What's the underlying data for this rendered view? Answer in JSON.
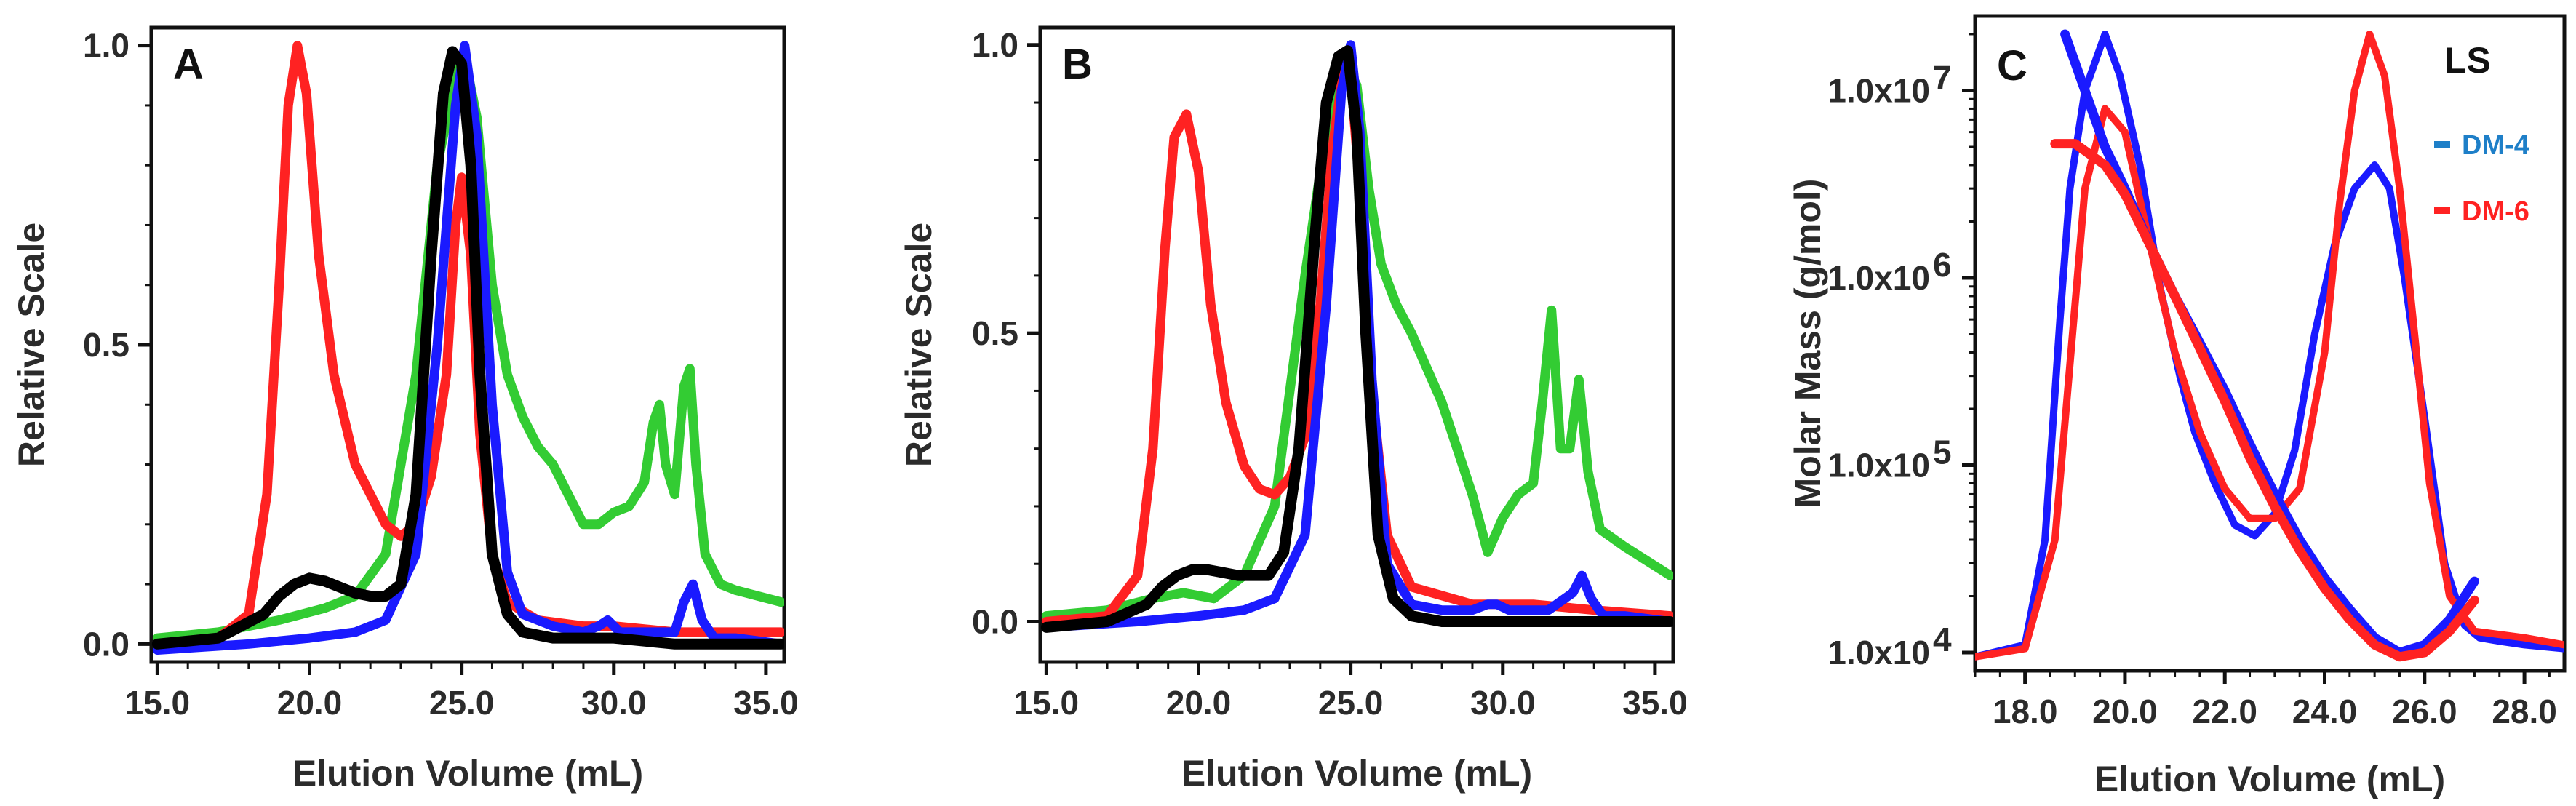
{
  "chart_data": [
    {
      "id": "A",
      "type": "line",
      "panel_label": "A",
      "xlabel": "Elution Volume (mL)",
      "ylabel": "Relative Scale",
      "xlim": [
        14.8,
        35.6
      ],
      "ylim": [
        -0.03,
        1.03
      ],
      "xticks": [
        15.0,
        20.0,
        25.0,
        30.0,
        35.0
      ],
      "xtick_labels": [
        "15.0",
        "20.0",
        "25.0",
        "30.0",
        "35.0"
      ],
      "yticks": [
        0.0,
        0.5,
        1.0
      ],
      "ytick_labels": [
        "0.0",
        "0.5",
        "1.0"
      ],
      "series": [
        {
          "name": "green",
          "color": "#33cc33",
          "x": [
            15.0,
            17.0,
            19.0,
            20.5,
            21.5,
            22.5,
            23.5,
            24.2,
            24.8,
            25.1,
            25.5,
            26.0,
            26.5,
            27.0,
            27.5,
            28.0,
            28.5,
            29.0,
            29.5,
            30.0,
            30.5,
            31.0,
            31.3,
            31.5,
            31.7,
            32.0,
            32.3,
            32.5,
            32.7,
            33.0,
            33.5,
            34.0,
            35.5
          ],
          "y": [
            0.01,
            0.02,
            0.04,
            0.06,
            0.08,
            0.15,
            0.45,
            0.8,
            0.95,
            0.98,
            0.88,
            0.6,
            0.45,
            0.38,
            0.33,
            0.3,
            0.25,
            0.2,
            0.2,
            0.22,
            0.23,
            0.27,
            0.37,
            0.4,
            0.3,
            0.25,
            0.43,
            0.46,
            0.3,
            0.15,
            0.1,
            0.09,
            0.07
          ]
        },
        {
          "name": "red",
          "color": "#ff2222",
          "x": [
            15.0,
            17.0,
            18.0,
            18.6,
            19.0,
            19.3,
            19.6,
            19.9,
            20.3,
            20.8,
            21.5,
            22.5,
            23.0,
            23.5,
            24.0,
            24.5,
            24.8,
            25.0,
            25.3,
            25.6,
            26.0,
            26.5,
            27.5,
            29.0,
            30.0,
            32.0,
            35.5
          ],
          "y": [
            0.0,
            0.01,
            0.05,
            0.25,
            0.6,
            0.9,
            1.0,
            0.92,
            0.65,
            0.45,
            0.3,
            0.2,
            0.18,
            0.2,
            0.28,
            0.45,
            0.7,
            0.78,
            0.65,
            0.35,
            0.15,
            0.07,
            0.04,
            0.03,
            0.03,
            0.02,
            0.02
          ]
        },
        {
          "name": "blue",
          "color": "#1a1aff",
          "x": [
            15.0,
            18.0,
            20.0,
            21.5,
            22.5,
            23.5,
            24.2,
            24.8,
            25.1,
            25.5,
            26.0,
            26.5,
            27.0,
            28.0,
            29.0,
            29.5,
            29.8,
            30.2,
            31.0,
            32.0,
            32.3,
            32.6,
            32.9,
            33.3,
            34.0,
            35.5
          ],
          "y": [
            -0.01,
            0.0,
            0.01,
            0.02,
            0.04,
            0.15,
            0.5,
            0.9,
            1.0,
            0.85,
            0.4,
            0.12,
            0.05,
            0.03,
            0.02,
            0.03,
            0.04,
            0.02,
            0.02,
            0.02,
            0.07,
            0.1,
            0.04,
            0.01,
            0.01,
            0.0
          ]
        },
        {
          "name": "black",
          "color": "#000000",
          "x": [
            15.0,
            17.0,
            18.5,
            19.0,
            19.5,
            20.0,
            20.5,
            21.0,
            21.5,
            22.0,
            22.5,
            23.0,
            23.5,
            24.0,
            24.4,
            24.7,
            25.0,
            25.3,
            25.6,
            26.0,
            26.5,
            27.0,
            28.0,
            30.0,
            32.0,
            35.5
          ],
          "y": [
            0.0,
            0.01,
            0.05,
            0.08,
            0.1,
            0.11,
            0.105,
            0.095,
            0.085,
            0.08,
            0.08,
            0.1,
            0.25,
            0.65,
            0.92,
            0.99,
            0.97,
            0.8,
            0.45,
            0.15,
            0.05,
            0.02,
            0.01,
            0.01,
            0.0,
            0.0
          ]
        }
      ]
    },
    {
      "id": "B",
      "type": "line",
      "panel_label": "B",
      "xlabel": "Elution Volume (mL)",
      "ylabel": "Relative Scale",
      "xlim": [
        14.8,
        35.6
      ],
      "ylim": [
        -0.07,
        1.03
      ],
      "xticks": [
        15.0,
        20.0,
        25.0,
        30.0,
        35.0
      ],
      "xtick_labels": [
        "15.0",
        "20.0",
        "25.0",
        "30.0",
        "35.0"
      ],
      "yticks": [
        0.0,
        0.5,
        1.0
      ],
      "ytick_labels": [
        "0.0",
        "0.5",
        "1.0"
      ],
      "series": [
        {
          "name": "green",
          "color": "#33cc33",
          "x": [
            15.0,
            17.0,
            18.5,
            19.5,
            20.5,
            21.5,
            22.5,
            23.5,
            24.2,
            24.8,
            25.2,
            25.6,
            26.0,
            26.5,
            27.0,
            27.5,
            28.0,
            28.5,
            29.0,
            29.5,
            30.0,
            30.5,
            31.0,
            31.3,
            31.6,
            31.9,
            32.2,
            32.5,
            32.8,
            33.2,
            34.0,
            35.5
          ],
          "y": [
            0.01,
            0.02,
            0.04,
            0.05,
            0.04,
            0.08,
            0.2,
            0.6,
            0.85,
            0.97,
            0.93,
            0.75,
            0.62,
            0.55,
            0.5,
            0.44,
            0.38,
            0.3,
            0.22,
            0.12,
            0.18,
            0.22,
            0.24,
            0.38,
            0.54,
            0.3,
            0.3,
            0.42,
            0.26,
            0.16,
            0.13,
            0.08
          ]
        },
        {
          "name": "red",
          "color": "#ff2222",
          "x": [
            15.0,
            17.0,
            18.0,
            18.5,
            18.9,
            19.2,
            19.6,
            20.0,
            20.4,
            20.9,
            21.5,
            22.0,
            22.5,
            23.0,
            23.5,
            24.0,
            24.4,
            24.8,
            25.0,
            25.3,
            25.7,
            26.2,
            27.0,
            29.0,
            31.0,
            33.0,
            35.5
          ],
          "y": [
            0.0,
            0.01,
            0.08,
            0.3,
            0.65,
            0.84,
            0.88,
            0.78,
            0.55,
            0.38,
            0.27,
            0.23,
            0.22,
            0.25,
            0.32,
            0.55,
            0.82,
            0.97,
            0.95,
            0.75,
            0.4,
            0.15,
            0.06,
            0.03,
            0.03,
            0.02,
            0.01
          ]
        },
        {
          "name": "blue",
          "color": "#1a1aff",
          "x": [
            15.0,
            18.0,
            20.0,
            21.5,
            22.5,
            23.5,
            24.2,
            24.7,
            25.0,
            25.3,
            25.7,
            26.2,
            27.0,
            28.0,
            29.0,
            29.5,
            29.8,
            30.2,
            31.5,
            32.3,
            32.6,
            32.9,
            33.3,
            34.0,
            35.5
          ],
          "y": [
            -0.01,
            0.0,
            0.01,
            0.02,
            0.04,
            0.15,
            0.55,
            0.92,
            1.0,
            0.85,
            0.42,
            0.1,
            0.03,
            0.02,
            0.02,
            0.03,
            0.03,
            0.02,
            0.02,
            0.05,
            0.08,
            0.04,
            0.01,
            0.01,
            0.0
          ]
        },
        {
          "name": "black",
          "color": "#000000",
          "x": [
            15.0,
            17.0,
            18.3,
            18.8,
            19.3,
            19.8,
            20.3,
            20.8,
            21.3,
            21.8,
            22.3,
            22.8,
            23.3,
            23.8,
            24.2,
            24.6,
            24.9,
            25.2,
            25.5,
            25.9,
            26.4,
            27.0,
            28.0,
            30.0,
            32.0,
            35.5
          ],
          "y": [
            -0.01,
            0.0,
            0.03,
            0.06,
            0.08,
            0.09,
            0.09,
            0.085,
            0.08,
            0.08,
            0.08,
            0.12,
            0.3,
            0.65,
            0.9,
            0.98,
            0.99,
            0.85,
            0.5,
            0.15,
            0.04,
            0.01,
            0.0,
            0.0,
            0.0,
            0.0
          ]
        }
      ]
    },
    {
      "id": "C",
      "type": "line",
      "panel_label": "C",
      "annotation": "LS",
      "xlabel": "Elution Volume (mL)",
      "ylabel": "Molar Mass (g/mol)",
      "yscale": "log",
      "xlim": [
        17.0,
        28.8
      ],
      "ylim": [
        8000,
        25000000
      ],
      "xticks": [
        18.0,
        20.0,
        22.0,
        24.0,
        26.0,
        28.0
      ],
      "xtick_labels": [
        "18.0",
        "20.0",
        "22.0",
        "24.0",
        "26.0",
        "28.0"
      ],
      "yticks": [
        10000,
        100000,
        1000000,
        10000000
      ],
      "ytick_labels": [
        "1.0x10",
        "1.0x10",
        "1.0x10",
        "1.0x10"
      ],
      "ytick_exponents": [
        "4",
        "5",
        "6",
        "7"
      ],
      "legend": [
        "DM-4",
        "DM-6"
      ],
      "series": [
        {
          "name": "DM-4",
          "color": "#1a1aff",
          "label_color": "#1e7fc8",
          "x": [
            17.0,
            18.0,
            18.4,
            18.7,
            18.9,
            19.2,
            19.6,
            19.9,
            20.3,
            20.7,
            21.1,
            21.4,
            21.8,
            22.2,
            22.6,
            23.0,
            23.4,
            23.8,
            24.2,
            24.6,
            25.0,
            25.3,
            25.6,
            26.0,
            26.4,
            26.8,
            27.1,
            27.5,
            28.0,
            28.8
          ],
          "y": [
            9500,
            11000,
            40000,
            600000,
            3000000,
            10000000,
            20000000,
            12000000,
            4000000,
            900000,
            300000,
            150000,
            80000,
            48000,
            42000,
            55000,
            120000,
            500000,
            1500000,
            3000000,
            4000000,
            3000000,
            1000000,
            180000,
            30000,
            14000,
            12000,
            11500,
            11000,
            10500
          ]
        },
        {
          "name": "DM-6",
          "color": "#ff2222",
          "label_color": "#ff2222",
          "x": [
            17.0,
            18.0,
            18.6,
            19.2,
            19.6,
            20.0,
            20.5,
            21.0,
            21.5,
            22.0,
            22.5,
            23.0,
            23.5,
            24.0,
            24.3,
            24.6,
            24.9,
            25.2,
            25.5,
            25.8,
            26.1,
            26.5,
            27.0,
            28.0,
            28.8
          ],
          "y": [
            9500,
            10500,
            40000,
            3000000,
            8000000,
            6000000,
            1500000,
            400000,
            150000,
            75000,
            52000,
            52000,
            75000,
            400000,
            2500000,
            10000000,
            20000000,
            12000000,
            3000000,
            500000,
            80000,
            20000,
            13000,
            12000,
            11000
          ]
        },
        {
          "name": "DM-4 molar mass",
          "color": "#1a1aff",
          "x": [
            18.8,
            19.2,
            19.6,
            20.0,
            20.5,
            21.0,
            21.5,
            22.0,
            22.5,
            23.0,
            23.5,
            24.0,
            24.5,
            25.0,
            25.5,
            26.0,
            26.5,
            27.0
          ],
          "y": [
            20000000,
            10000000,
            5000000,
            3000000,
            1500000,
            800000,
            450000,
            250000,
            130000,
            70000,
            40000,
            25000,
            17000,
            12000,
            10000,
            11000,
            15000,
            24000
          ]
        },
        {
          "name": "DM-6 molar mass",
          "color": "#ff2222",
          "x": [
            18.6,
            19.0,
            19.6,
            20.0,
            20.5,
            21.0,
            21.5,
            22.0,
            22.5,
            23.0,
            23.5,
            24.0,
            24.5,
            25.0,
            25.5,
            26.0,
            26.5,
            27.0
          ],
          "y": [
            5200000,
            5200000,
            4000000,
            2800000,
            1500000,
            800000,
            420000,
            220000,
            110000,
            60000,
            35000,
            22000,
            15000,
            11000,
            9500,
            10000,
            13000,
            19000
          ]
        }
      ]
    }
  ]
}
